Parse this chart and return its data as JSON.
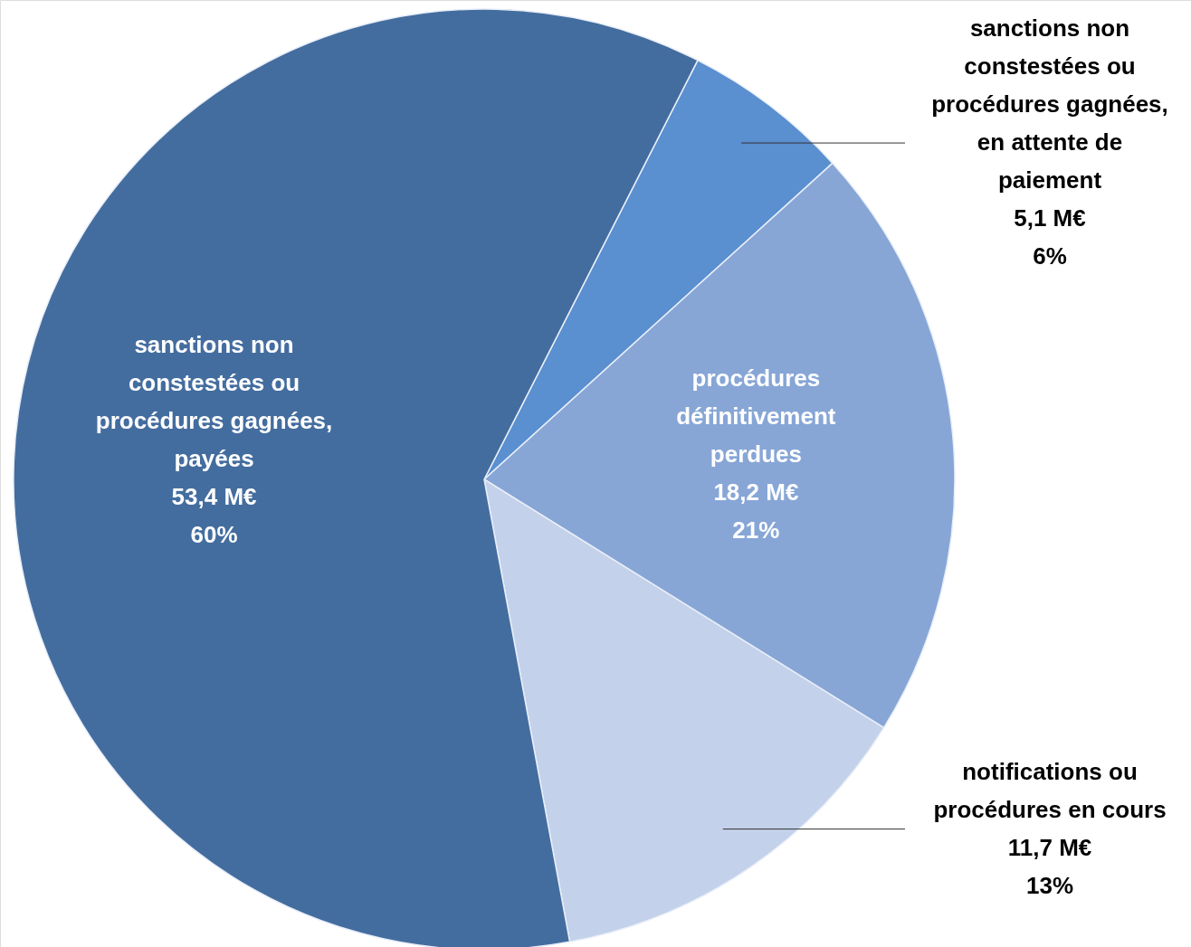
{
  "chart_data": {
    "type": "pie",
    "categories": [
      "sanctions non constestées ou procédures gagnées, en attente de paiement",
      "procédures définitivement perdues",
      "notifications ou procédures en cours",
      "sanctions non constestées ou procédures gagnées, payées"
    ],
    "values": [
      5.1,
      18.2,
      11.7,
      53.4
    ],
    "value_labels": [
      "5,1 M€\n6%",
      "18,2 M€\n21%",
      "11,7 M€\n13%",
      "53,4 M€\n60%"
    ],
    "colors": [
      "#5a8fd0",
      "#87a6d6",
      "#c3d1ea",
      "#446d9f"
    ]
  }
}
